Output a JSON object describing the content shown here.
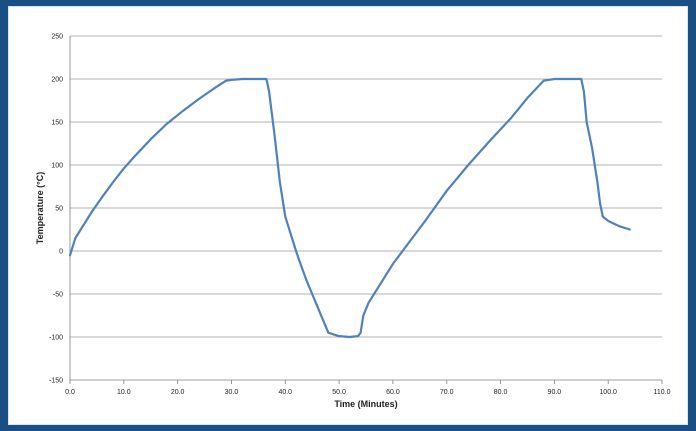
{
  "chart_data": {
    "type": "line",
    "title": "",
    "xlabel": "Time (Minutes)",
    "ylabel": "Temperature (°C)",
    "xlim": [
      0,
      110
    ],
    "ylim": [
      -150,
      250
    ],
    "x_ticks": [
      0,
      10,
      20,
      30,
      40,
      50,
      60,
      70,
      80,
      90,
      100,
      110
    ],
    "x_tick_labels": [
      "0.0",
      "10.0",
      "20.0",
      "30.0",
      "40.0",
      "50.0",
      "60.0",
      "70.0",
      "80.0",
      "90.0",
      "100.0",
      "110.0"
    ],
    "y_ticks": [
      -150,
      -100,
      -50,
      0,
      50,
      100,
      150,
      200,
      250
    ],
    "y_tick_labels": [
      "-150",
      "-100",
      "-50",
      "0",
      "50",
      "100",
      "150",
      "200",
      "250"
    ],
    "grid": true,
    "legend": "none",
    "series": [
      {
        "color": "#4f81bd",
        "points": [
          [
            0.0,
            -5
          ],
          [
            0.5,
            5
          ],
          [
            1.0,
            15
          ],
          [
            2.0,
            25
          ],
          [
            4.0,
            45
          ],
          [
            6.0,
            63
          ],
          [
            8.0,
            80
          ],
          [
            10.0,
            96
          ],
          [
            12.0,
            110
          ],
          [
            15.0,
            130
          ],
          [
            18.0,
            148
          ],
          [
            21.0,
            163
          ],
          [
            24.0,
            177
          ],
          [
            27.0,
            190
          ],
          [
            29.0,
            198
          ],
          [
            30.0,
            199
          ],
          [
            32.0,
            200
          ],
          [
            35.0,
            200
          ],
          [
            36.5,
            200
          ],
          [
            37.0,
            185
          ],
          [
            38.0,
            135
          ],
          [
            39.0,
            80
          ],
          [
            40.0,
            40
          ],
          [
            41.0,
            20
          ],
          [
            42.0,
            0
          ],
          [
            43.0,
            -18
          ],
          [
            44.0,
            -35
          ],
          [
            45.0,
            -50
          ],
          [
            46.0,
            -65
          ],
          [
            47.0,
            -80
          ],
          [
            48.0,
            -95
          ],
          [
            49.0,
            -97
          ],
          [
            50.0,
            -99
          ],
          [
            52.0,
            -100
          ],
          [
            53.5,
            -99
          ],
          [
            54.0,
            -95
          ],
          [
            54.5,
            -75
          ],
          [
            55.5,
            -60
          ],
          [
            57.0,
            -45
          ],
          [
            60.0,
            -15
          ],
          [
            63.0,
            10
          ],
          [
            66.0,
            35
          ],
          [
            70.0,
            70
          ],
          [
            74.0,
            100
          ],
          [
            78.0,
            128
          ],
          [
            82.0,
            155
          ],
          [
            85.0,
            178
          ],
          [
            88.0,
            198
          ],
          [
            90.0,
            200
          ],
          [
            94.0,
            200
          ],
          [
            95.0,
            200
          ],
          [
            95.5,
            185
          ],
          [
            96.0,
            150
          ],
          [
            97.0,
            120
          ],
          [
            98.0,
            80
          ],
          [
            98.5,
            55
          ],
          [
            99.0,
            40
          ],
          [
            100.0,
            35
          ],
          [
            101.0,
            32
          ],
          [
            102.0,
            29
          ],
          [
            103.0,
            27
          ],
          [
            104.0,
            25
          ]
        ]
      }
    ]
  }
}
